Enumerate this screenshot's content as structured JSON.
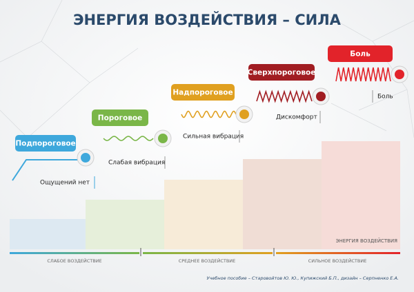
{
  "title": "ЭНЕРГИЯ ВОЗДЕЙСТВИЯ – СИЛА",
  "levels": [
    {
      "label": "Подпороговое",
      "description": "Ощущений нет",
      "color": "#3ea8dc"
    },
    {
      "label": "Пороговое",
      "description": "Слабая вибрация",
      "color": "#7ab648"
    },
    {
      "label": "Надпороговое",
      "description": "Сильная вибрация",
      "color": "#e0a020"
    },
    {
      "label": "Сверхпороговое",
      "description": "Дискомфорт",
      "color": "#a11d22"
    },
    {
      "label": "Боль",
      "description": "Боль",
      "color": "#e2232a"
    }
  ],
  "scale": {
    "axis_label": "ЭНЕРГИЯ ВОЗДЕЙСТВИЯ",
    "zones": [
      "СЛАБОЕ ВОЗДЕЙСТВИЕ",
      "СРЕДНЕЕ ВОЗДЕЙСТВИЕ",
      "СИЛЬНОЕ ВОЗДЕЙСТВИЕ"
    ]
  },
  "credit": "Учебное пособие – Старовойтов Ю. Ю., Купижский Б.П., дизайн – Серпненко Е.А."
}
